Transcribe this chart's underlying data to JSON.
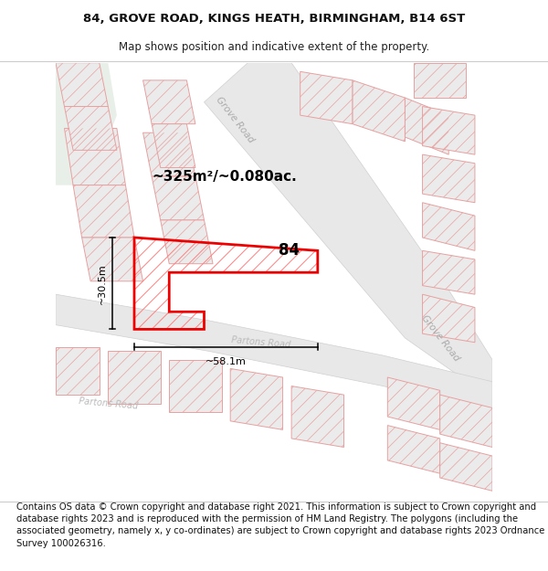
{
  "title": "84, GROVE ROAD, KINGS HEATH, BIRMINGHAM, B14 6ST",
  "subtitle": "Map shows position and indicative extent of the property.",
  "footer": "Contains OS data © Crown copyright and database right 2021. This information is subject to Crown copyright and database rights 2023 and is reproduced with the permission of HM Land Registry. The polygons (including the associated geometry, namely x, y co-ordinates) are subject to Crown copyright and database rights 2023 Ordnance Survey 100026316.",
  "area_label": "~325m²/~0.080ac.",
  "number_label": "84",
  "dim_width": "~58.1m",
  "dim_height": "~30.5m",
  "road_label_grove_top": "Grove Road",
  "road_label_grove_right": "Grove Road",
  "road_label_partons_mid": "Partons Road",
  "road_label_partons_left": "Partons Road",
  "bg_color": "#ffffff",
  "road_fill": "#e8e8e8",
  "road_edge": "#d0d0d0",
  "bld_fill": "#ebebeb",
  "bld_stroke": "#e8a0a0",
  "hatch_color": "#e8a0a0",
  "green_fill": "#e8efe8",
  "prop_color": "#ee0000",
  "prop_hatch": "#ff8080",
  "title_fontsize": 9.5,
  "subtitle_fontsize": 8.5,
  "footer_fontsize": 7.2,
  "road_label_color": "#aaaaaa",
  "dim_label_fontsize": 8,
  "area_label_fontsize": 11,
  "number_label_fontsize": 12
}
